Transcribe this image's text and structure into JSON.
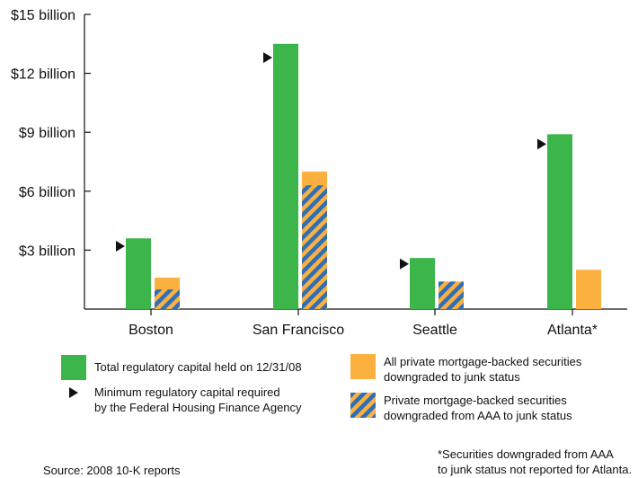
{
  "colors": {
    "total_capital": "#3cb54a",
    "all_private_mbs": "#fbb040",
    "aaa_stripe_a": "#2e6fb7",
    "aaa_stripe_b": "#fbb040",
    "marker": "#111111"
  },
  "chart_data": {
    "type": "bar",
    "categories": [
      "Boston",
      "San Francisco",
      "Seattle",
      "Atlanta*"
    ],
    "series": [
      {
        "name": "Total regulatory capital held on 12/31/08",
        "values": [
          3.6,
          13.5,
          2.6,
          8.9
        ]
      },
      {
        "name": "All private mortgage-backed securities downgraded to junk status",
        "values": [
          1.6,
          7.0,
          1.4,
          2.0
        ]
      },
      {
        "name": "Private mortgage-backed securities downgraded from AAA to junk status",
        "values": [
          1.0,
          6.3,
          1.4,
          null
        ]
      }
    ],
    "markers": {
      "name": "Minimum regulatory capital required by the Federal Housing Finance Agency",
      "values": [
        3.2,
        12.8,
        2.3,
        8.4
      ]
    },
    "yticks": [
      {
        "value": 3,
        "label": "$3 billion"
      },
      {
        "value": 6,
        "label": "$6 billion"
      },
      {
        "value": 9,
        "label": "$9 billion"
      },
      {
        "value": 12,
        "label": "$12 billion"
      },
      {
        "value": 15,
        "label": "$15 billion"
      }
    ],
    "ylim": [
      0,
      15
    ],
    "grid": false
  },
  "legend": {
    "total_capital": "Total regulatory capital held on 12/31/08",
    "minimum_capital": "Minimum regulatory capital required\nby the Federal Housing Finance Agency",
    "all_private": "All private mortgage-backed securities\ndowngraded to junk status",
    "aaa_to_junk": "Private mortgage-backed securities\ndowngraded from AAA to junk status"
  },
  "source": "Source: 2008 10-K reports",
  "footnote": "*Securities downgraded from AAA\nto junk status not reported for Atlanta."
}
